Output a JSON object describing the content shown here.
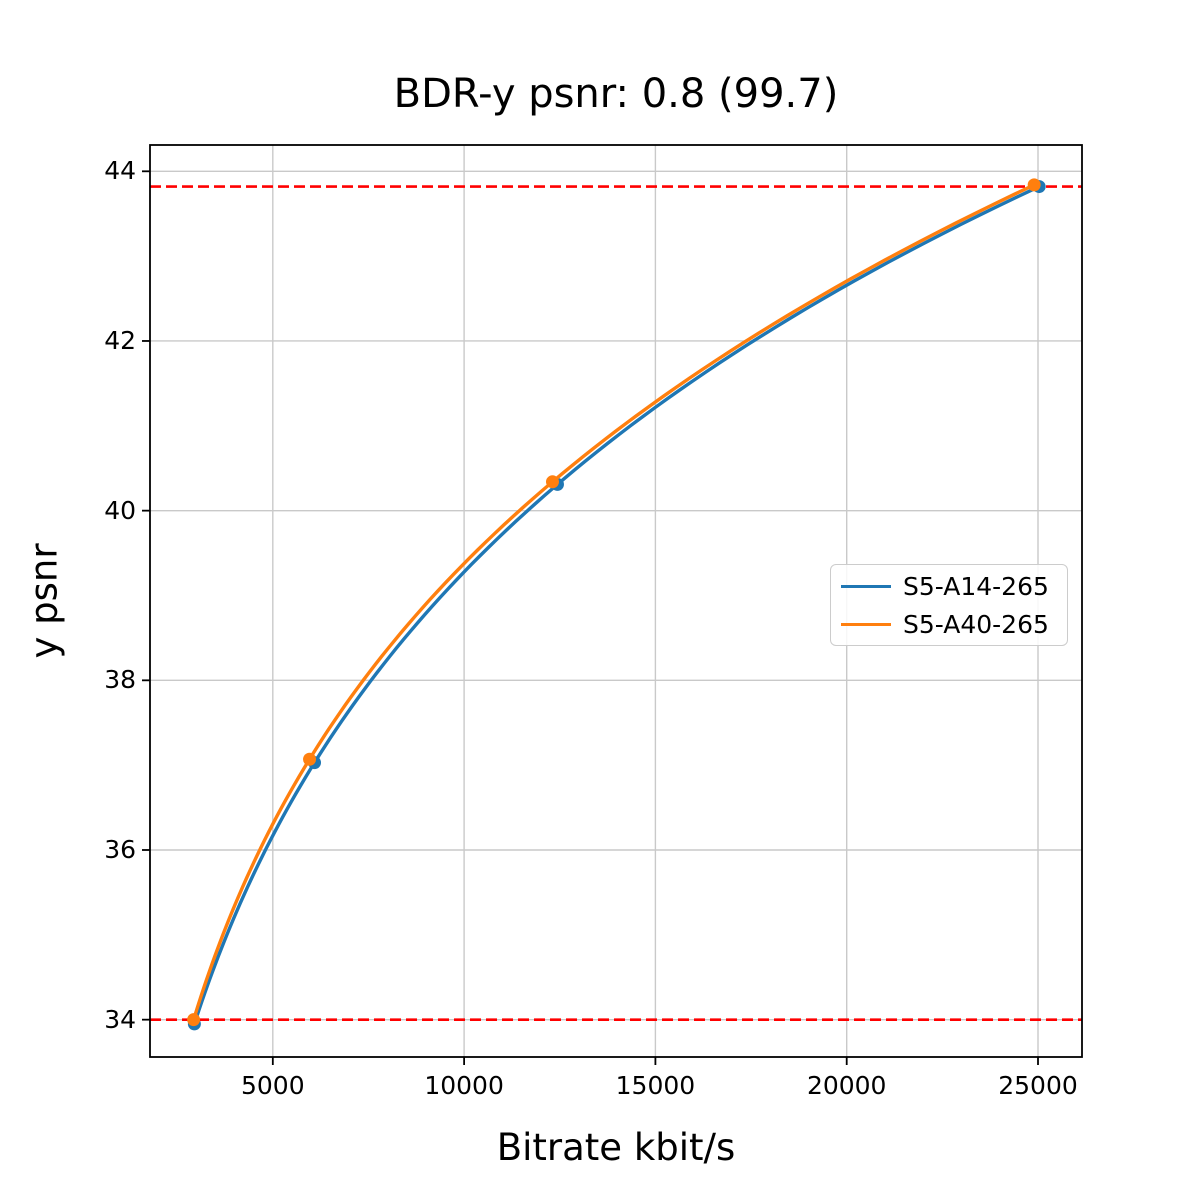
{
  "chart_data": {
    "type": "line",
    "title": "BDR-y psnr: 0.8 (99.7)",
    "xlabel": "Bitrate kbit/s",
    "ylabel": "y psnr",
    "grid": true,
    "legend_position": "center right",
    "xlim": [
      1790,
      26150
    ],
    "ylim": [
      33.56,
      44.31
    ],
    "x_ticks": [
      5000,
      10000,
      15000,
      20000,
      25000
    ],
    "x_tick_labels": [
      "5000",
      "10000",
      "15000",
      "20000",
      "25000"
    ],
    "y_ticks": [
      34,
      36,
      38,
      40,
      42,
      44
    ],
    "y_tick_labels": [
      "34",
      "36",
      "38",
      "40",
      "42",
      "44"
    ],
    "series": [
      {
        "name": "S5-A14-265",
        "color": "#1f77b4",
        "interpolation": "cubic-in-log10-bitrate",
        "points": [
          [
            2950,
            33.95
          ],
          [
            6090,
            37.03
          ],
          [
            12440,
            40.31
          ],
          [
            25030,
            43.82
          ]
        ]
      },
      {
        "name": "S5-A40-265",
        "color": "#ff7f0e",
        "interpolation": "cubic-in-log10-bitrate",
        "points": [
          [
            2930,
            34.0
          ],
          [
            5960,
            37.07
          ],
          [
            12310,
            40.34
          ],
          [
            24900,
            43.84
          ]
        ]
      }
    ],
    "hlines": [
      {
        "y": 34.0,
        "color": "#ff0000",
        "style": "dashed"
      },
      {
        "y": 43.82,
        "color": "#ff0000",
        "style": "dashed"
      }
    ],
    "colors": {
      "grid": "#c9c9c9",
      "spine": "#000000",
      "background": "#ffffff"
    }
  }
}
